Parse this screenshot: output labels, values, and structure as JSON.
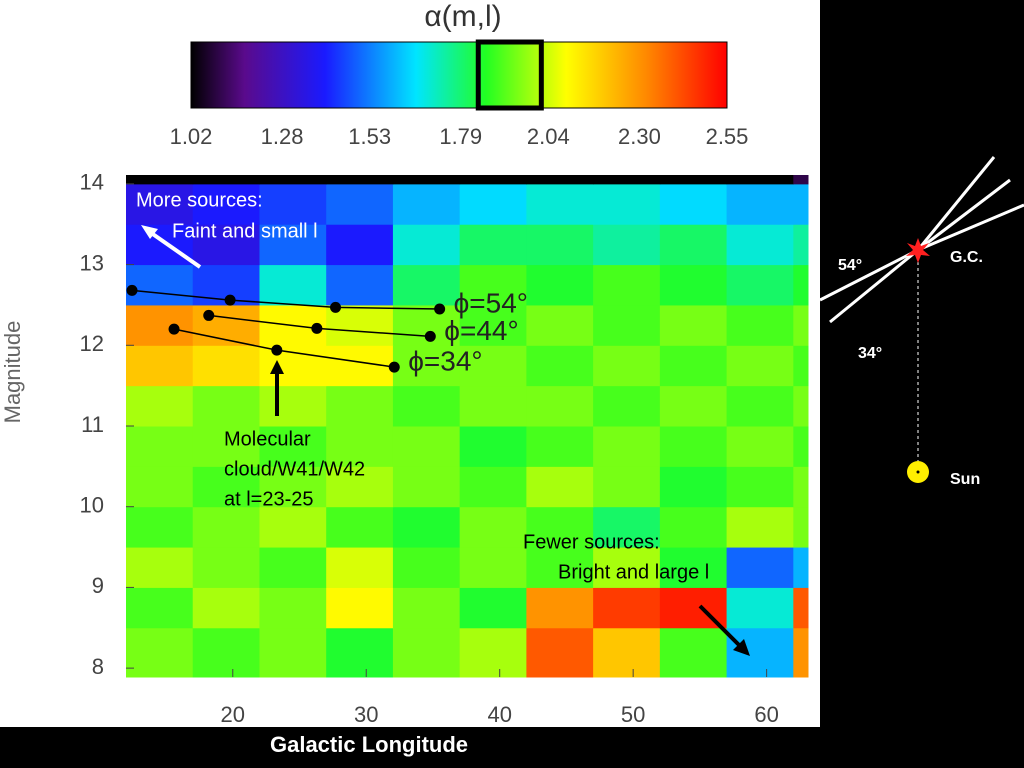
{
  "chart_data": {
    "type": "heatmap",
    "colorbar_title": "α(m,l)",
    "xlabel": "Galactic Longitude",
    "ylabel": "Magnitude",
    "clim": [
      1.02,
      2.55
    ],
    "cticks": [
      1.02,
      1.28,
      1.53,
      1.79,
      2.04,
      {
        "value": 2.3,
        "label": "2.30"
      },
      2.55
    ],
    "colorbar_highlight": [
      1.84,
      2.02
    ],
    "xlim": [
      12,
      63.1
    ],
    "ylim": [
      7.89,
      14.11
    ],
    "xticks": [
      20,
      30,
      40,
      50,
      60
    ],
    "yticks": [
      14,
      13,
      12,
      11,
      10,
      9,
      8
    ],
    "x_bins": [
      12,
      17,
      22,
      27,
      32,
      37,
      42,
      47,
      52,
      57,
      62,
      63.1
    ],
    "y_bins": [
      7.89,
      8.5,
      9,
      9.5,
      10,
      10.5,
      11,
      11.5,
      12,
      12.5,
      13,
      13.5,
      14,
      14.11
    ],
    "z": [
      [
        1.95,
        1.9,
        1.95,
        1.85,
        1.95,
        2.0,
        2.4,
        2.2,
        1.9,
        1.6,
        2.3
      ],
      [
        1.9,
        2.0,
        1.95,
        2.1,
        1.95,
        1.85,
        2.3,
        2.45,
        2.5,
        1.7,
        2.4
      ],
      [
        2.0,
        1.95,
        1.9,
        2.05,
        1.9,
        1.95,
        1.9,
        2.0,
        1.85,
        1.5,
        1.6
      ],
      [
        1.9,
        1.95,
        2.0,
        1.9,
        1.85,
        1.95,
        1.9,
        1.8,
        1.9,
        2.0,
        1.95
      ],
      [
        1.95,
        1.9,
        1.95,
        2.0,
        1.95,
        1.9,
        2.0,
        1.95,
        1.85,
        1.9,
        1.95
      ],
      [
        1.95,
        1.95,
        1.9,
        1.95,
        1.95,
        1.85,
        1.9,
        1.95,
        1.9,
        1.95,
        1.9
      ],
      [
        2.0,
        1.95,
        2.0,
        1.95,
        1.9,
        1.95,
        1.95,
        1.9,
        1.95,
        1.9,
        1.95
      ],
      [
        2.2,
        2.15,
        2.1,
        2.1,
        1.95,
        1.95,
        1.9,
        1.95,
        1.9,
        1.95,
        1.9
      ],
      [
        2.3,
        2.25,
        2.1,
        2.05,
        1.95,
        1.9,
        1.95,
        1.9,
        1.95,
        1.9,
        1.95
      ],
      [
        1.5,
        1.45,
        1.7,
        1.5,
        1.8,
        1.9,
        1.85,
        1.9,
        1.85,
        1.8,
        1.85
      ],
      [
        1.4,
        1.35,
        1.5,
        1.4,
        1.7,
        1.8,
        1.8,
        1.75,
        1.8,
        1.7,
        1.75
      ],
      [
        1.35,
        1.4,
        1.45,
        1.5,
        1.6,
        1.65,
        1.7,
        1.7,
        1.65,
        1.6,
        1.6
      ],
      [
        1.02,
        1.02,
        1.02,
        1.02,
        1.02,
        1.02,
        1.02,
        1.02,
        1.02,
        1.02,
        1.1
      ]
    ],
    "curves": [
      {
        "name": "ϕ=54°",
        "l": [
          12.45,
          19.8,
          27.7,
          35.5
        ],
        "mag": [
          12.68,
          12.56,
          12.47,
          12.45
        ]
      },
      {
        "name": "ϕ=44°",
        "l": [
          18.2,
          26.3,
          34.8
        ],
        "mag": [
          12.37,
          12.21,
          12.11
        ]
      },
      {
        "name": "ϕ=34°",
        "l": [
          15.6,
          23.3,
          32.1
        ],
        "mag": [
          12.2,
          11.94,
          11.73
        ]
      }
    ],
    "annotations": {
      "more_sources": [
        "More sources:",
        "Faint and small l"
      ],
      "cloud": [
        "Molecular",
        "cloud/W41/W42",
        "at l=23-25"
      ],
      "fewer_sources": [
        "Fewer sources:",
        "Bright and large l"
      ]
    },
    "diagram": {
      "angle_54": "54°",
      "angle_34": "34°",
      "gc": "G.C.",
      "sun": "Sun"
    }
  }
}
